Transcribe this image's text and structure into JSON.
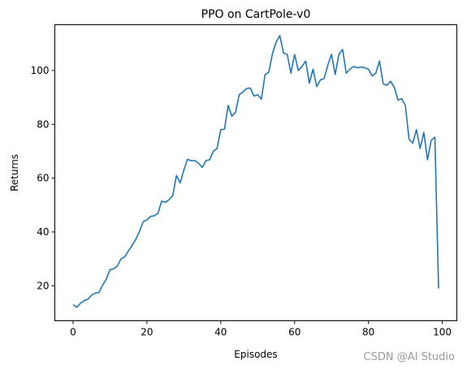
{
  "chart_data": {
    "type": "line",
    "title": "PPO on CartPole-v0",
    "xlabel": "Episodes",
    "ylabel": "Returns",
    "xlim": [
      -4.95,
      103.95
    ],
    "ylim": [
      7.0,
      117.0
    ],
    "xticks": [
      0,
      20,
      40,
      60,
      80,
      100
    ],
    "yticks": [
      20,
      40,
      60,
      80,
      100
    ],
    "grid": false,
    "series": [
      {
        "color": "#1f77b4",
        "x": [
          0,
          1,
          2,
          3,
          4,
          5,
          6,
          7,
          8,
          9,
          10,
          11,
          12,
          13,
          14,
          15,
          16,
          17,
          18,
          19,
          20,
          21,
          22,
          23,
          24,
          25,
          26,
          27,
          28,
          29,
          30,
          31,
          32,
          33,
          34,
          35,
          36,
          37,
          38,
          39,
          40,
          41,
          42,
          43,
          44,
          45,
          46,
          47,
          48,
          49,
          50,
          51,
          52,
          53,
          54,
          55,
          56,
          57,
          58,
          59,
          60,
          61,
          62,
          63,
          64,
          65,
          66,
          67,
          68,
          69,
          70,
          71,
          72,
          73,
          74,
          75,
          76,
          77,
          78,
          79,
          80,
          81,
          82,
          83,
          84,
          85,
          86,
          87,
          88,
          89,
          90,
          91,
          92,
          93,
          94,
          95,
          96,
          97,
          98,
          99
        ],
        "y": [
          13.0,
          12.0,
          13.5,
          14.5,
          15.0,
          16.5,
          17.3,
          17.5,
          20.2,
          22.5,
          26.0,
          26.3,
          27.4,
          30.0,
          30.8,
          33.0,
          35.0,
          37.3,
          40.3,
          43.8,
          44.5,
          45.8,
          46.0,
          47.0,
          51.5,
          51.0,
          52.0,
          53.5,
          61.0,
          58.2,
          63.0,
          67.0,
          66.5,
          66.5,
          65.5,
          64.0,
          66.5,
          66.8,
          70.0,
          71.0,
          78.0,
          78.2,
          87.0,
          83.0,
          84.5,
          91.0,
          92.0,
          93.3,
          93.5,
          90.5,
          91.0,
          89.3,
          98.5,
          99.3,
          106.3,
          110.5,
          113.0,
          106.5,
          106.0,
          99.0,
          106.0,
          100.0,
          101.5,
          103.5,
          95.3,
          100.5,
          94.0,
          96.5,
          97.0,
          102.0,
          106.0,
          98.5,
          106.0,
          107.8,
          99.0,
          100.5,
          101.5,
          101.0,
          101.3,
          101.0,
          100.5,
          98.0,
          99.0,
          103.5,
          95.0,
          94.5,
          96.0,
          93.8,
          89.0,
          89.5,
          87.0,
          74.5,
          73.0,
          78.0,
          71.0,
          77.0,
          66.8,
          74.0,
          75.2,
          19.0
        ]
      }
    ]
  },
  "watermark": "CSDN @AI Studio"
}
